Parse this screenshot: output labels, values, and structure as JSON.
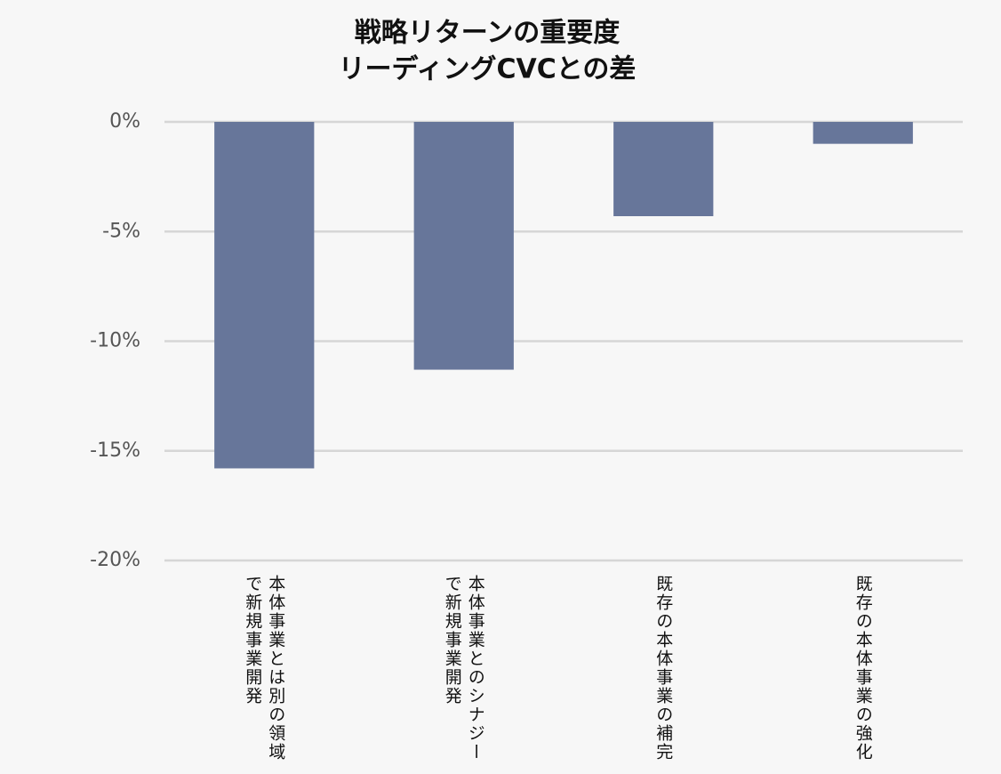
{
  "chart_data": {
    "type": "bar",
    "title": [
      "戦略リターンの重要度",
      "リーディングCVCとの差"
    ],
    "categories": [
      "本体事業とは別の領域で新規事業開発",
      "本体事業とのシナジーで新規事業開発",
      "既存の本体事業の補完",
      "既存の本体事業の強化"
    ],
    "values": [
      -15.8,
      -11.3,
      -4.3,
      -1.0
    ],
    "color": "#67769a",
    "ylim": [
      -20,
      0
    ],
    "yticks": [
      {
        "value": 0,
        "label": "0%"
      },
      {
        "value": -5,
        "label": "-5%"
      },
      {
        "value": -10,
        "label": "-10%"
      },
      {
        "value": -15,
        "label": "-15%"
      },
      {
        "value": -20,
        "label": "-20%"
      }
    ],
    "grid": true
  }
}
